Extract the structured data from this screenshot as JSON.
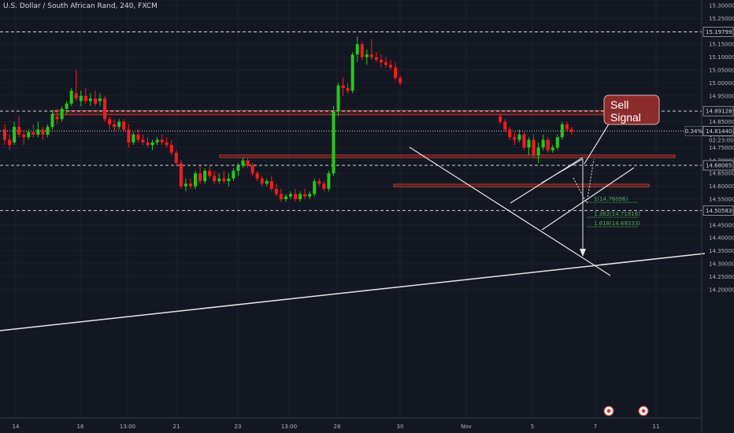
{
  "header": {
    "title": "U.S. Dollar / South African Rand, 240, FXCM"
  },
  "chart_data": {
    "type": "candlestick",
    "price_axis": {
      "ticks": [
        "15.30000",
        "15.25000",
        "15.20000",
        "15.15000",
        "15.10000",
        "15.05000",
        "15.00000",
        "14.95000",
        "14.90000",
        "14.85000",
        "14.80000",
        "14.75000",
        "14.70000",
        "14.65000",
        "14.60000",
        "14.55000",
        "14.50000",
        "14.45000",
        "14.40000",
        "14.35000",
        "14.30000",
        "14.25000",
        "14.20000"
      ],
      "ylim": [
        14.18,
        15.31
      ]
    },
    "time_axis": {
      "ticks": [
        "14",
        "16",
        "13:00",
        "21",
        "23",
        "13:00",
        "28",
        "30",
        "Nov",
        "5",
        "7",
        "11"
      ]
    },
    "levels": [
      {
        "label": "15.19799",
        "value": 15.198,
        "style": "dashed"
      },
      {
        "label": "14.89128",
        "value": 14.891,
        "style": "dashed"
      },
      {
        "label": "14.81440",
        "value": 14.814,
        "style": "dotted",
        "pct": "0.34%",
        "countdown": "02:23:00"
      },
      {
        "label": "14.68065",
        "value": 14.681,
        "style": "dashed"
      },
      {
        "label": "14.50583",
        "value": 14.506,
        "style": "dashed"
      }
    ],
    "fib_labels": [
      "1(14.76096)",
      "1.382(14.71916)",
      "1.618(14.69333)"
    ],
    "annotation": {
      "line1": "Sell",
      "line2": "Signal"
    },
    "colors": {
      "up": "#26c919",
      "down": "#ff1a1a",
      "zone": "#c0392b",
      "callout": "#8b2c2c",
      "fib": "#4caf50"
    },
    "candles": [
      [
        14.82,
        14.84,
        14.76,
        14.78
      ],
      [
        14.78,
        14.8,
        14.74,
        14.76
      ],
      [
        14.77,
        14.85,
        14.76,
        14.83
      ],
      [
        14.83,
        14.87,
        14.79,
        14.8
      ],
      [
        14.8,
        14.82,
        14.76,
        14.79
      ],
      [
        14.79,
        14.82,
        14.78,
        14.81
      ],
      [
        14.81,
        14.84,
        14.79,
        14.8
      ],
      [
        14.8,
        14.85,
        14.79,
        14.82
      ],
      [
        14.82,
        14.83,
        14.78,
        14.8
      ],
      [
        14.8,
        14.84,
        14.79,
        14.83
      ],
      [
        14.83,
        14.89,
        14.82,
        14.88
      ],
      [
        14.87,
        14.9,
        14.84,
        14.86
      ],
      [
        14.86,
        14.91,
        14.85,
        14.9
      ],
      [
        14.9,
        14.93,
        14.88,
        14.92
      ],
      [
        14.92,
        14.98,
        14.91,
        14.97
      ],
      [
        14.96,
        15.05,
        14.93,
        14.94
      ],
      [
        14.93,
        14.97,
        14.91,
        14.95
      ],
      [
        14.95,
        14.98,
        14.92,
        14.93
      ],
      [
        14.93,
        14.96,
        14.91,
        14.94
      ],
      [
        14.94,
        14.97,
        14.91,
        14.92
      ],
      [
        14.93,
        14.96,
        14.91,
        14.94
      ],
      [
        14.94,
        14.95,
        14.85,
        14.86
      ],
      [
        14.86,
        14.87,
        14.82,
        14.84
      ],
      [
        14.84,
        14.86,
        14.81,
        14.83
      ],
      [
        14.83,
        14.86,
        14.82,
        14.85
      ],
      [
        14.85,
        14.86,
        14.81,
        14.82
      ],
      [
        14.82,
        14.84,
        14.75,
        14.77
      ],
      [
        14.77,
        14.81,
        14.76,
        14.8
      ],
      [
        14.8,
        14.82,
        14.77,
        14.78
      ],
      [
        14.78,
        14.8,
        14.76,
        14.77
      ],
      [
        14.77,
        14.79,
        14.75,
        14.76
      ],
      [
        14.76,
        14.78,
        14.74,
        14.77
      ],
      [
        14.77,
        14.79,
        14.76,
        14.78
      ],
      [
        14.78,
        14.8,
        14.76,
        14.77
      ],
      [
        14.77,
        14.79,
        14.75,
        14.76
      ],
      [
        14.76,
        14.78,
        14.72,
        14.73
      ],
      [
        14.73,
        14.74,
        14.68,
        14.69
      ],
      [
        14.69,
        14.7,
        14.59,
        14.6
      ],
      [
        14.6,
        14.63,
        14.58,
        14.61
      ],
      [
        14.61,
        14.63,
        14.59,
        14.6
      ],
      [
        14.6,
        14.66,
        14.59,
        14.65
      ],
      [
        14.65,
        14.68,
        14.61,
        14.62
      ],
      [
        14.62,
        14.67,
        14.61,
        14.66
      ],
      [
        14.66,
        14.68,
        14.63,
        14.64
      ],
      [
        14.64,
        14.66,
        14.61,
        14.62
      ],
      [
        14.62,
        14.65,
        14.61,
        14.63
      ],
      [
        14.63,
        14.66,
        14.61,
        14.62
      ],
      [
        14.62,
        14.65,
        14.6,
        14.63
      ],
      [
        14.63,
        14.67,
        14.62,
        14.66
      ],
      [
        14.66,
        14.69,
        14.64,
        14.68
      ],
      [
        14.68,
        14.71,
        14.67,
        14.7
      ],
      [
        14.7,
        14.71,
        14.67,
        14.68
      ],
      [
        14.68,
        14.69,
        14.64,
        14.65
      ],
      [
        14.65,
        14.66,
        14.62,
        14.63
      ],
      [
        14.63,
        14.64,
        14.6,
        14.61
      ],
      [
        14.61,
        14.63,
        14.6,
        14.62
      ],
      [
        14.62,
        14.64,
        14.58,
        14.59
      ],
      [
        14.59,
        14.61,
        14.56,
        14.57
      ],
      [
        14.57,
        14.59,
        14.54,
        14.55
      ],
      [
        14.55,
        14.57,
        14.54,
        14.56
      ],
      [
        14.56,
        14.58,
        14.55,
        14.57
      ],
      [
        14.57,
        14.59,
        14.54,
        14.55
      ],
      [
        14.55,
        14.58,
        14.54,
        14.57
      ],
      [
        14.57,
        14.59,
        14.55,
        14.56
      ],
      [
        14.56,
        14.58,
        14.55,
        14.57
      ],
      [
        14.57,
        14.63,
        14.56,
        14.62
      ],
      [
        14.62,
        14.63,
        14.6,
        14.61
      ],
      [
        14.61,
        14.62,
        14.58,
        14.59
      ],
      [
        14.59,
        14.66,
        14.58,
        14.65
      ],
      [
        14.65,
        14.91,
        14.64,
        14.89
      ],
      [
        14.89,
        15.0,
        14.87,
        14.99
      ],
      [
        14.99,
        15.02,
        14.95,
        14.98
      ],
      [
        14.98,
        15.0,
        14.96,
        14.97
      ],
      [
        14.97,
        15.12,
        14.96,
        15.11
      ],
      [
        15.11,
        15.18,
        15.08,
        15.15
      ],
      [
        15.15,
        15.16,
        15.09,
        15.1
      ],
      [
        15.1,
        15.13,
        15.07,
        15.11
      ],
      [
        15.11,
        15.17,
        15.09,
        15.1
      ],
      [
        15.1,
        15.12,
        15.08,
        15.09
      ],
      [
        15.09,
        15.11,
        15.06,
        15.08
      ],
      [
        15.08,
        15.1,
        15.06,
        15.07
      ],
      [
        15.07,
        15.09,
        15.05,
        15.06
      ],
      [
        15.06,
        15.08,
        15.01,
        15.02
      ],
      [
        15.02,
        15.03,
        14.99,
        15.0
      ],
      [
        14.87,
        14.88,
        14.84,
        14.85
      ],
      [
        14.85,
        14.86,
        14.81,
        14.82
      ],
      [
        14.82,
        14.83,
        14.78,
        14.79
      ],
      [
        14.79,
        14.81,
        14.76,
        14.78
      ],
      [
        14.78,
        14.82,
        14.77,
        14.8
      ],
      [
        14.8,
        14.81,
        14.74,
        14.75
      ],
      [
        14.75,
        14.79,
        14.72,
        14.78
      ],
      [
        14.78,
        14.8,
        14.71,
        14.72
      ],
      [
        14.72,
        14.77,
        14.69,
        14.75
      ],
      [
        14.75,
        14.8,
        14.74,
        14.78
      ],
      [
        14.78,
        14.79,
        14.73,
        14.74
      ],
      [
        14.74,
        14.76,
        14.73,
        14.75
      ],
      [
        14.75,
        14.8,
        14.74,
        14.79
      ],
      [
        14.79,
        14.85,
        14.78,
        14.84
      ],
      [
        14.84,
        14.85,
        14.81,
        14.82
      ],
      [
        14.82,
        14.83,
        14.8,
        14.81
      ]
    ]
  }
}
